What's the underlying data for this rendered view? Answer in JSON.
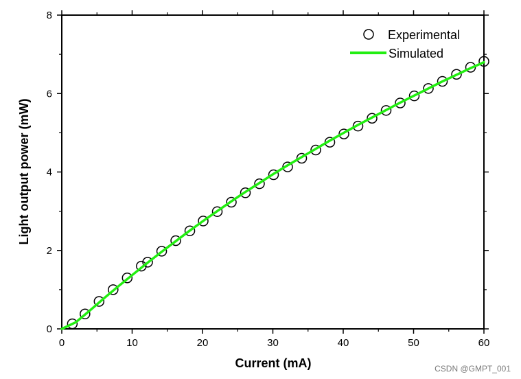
{
  "chart_data": {
    "type": "line",
    "title": "",
    "xlabel": "Current (mA)",
    "ylabel": "Light output power (mW)",
    "xlim": [
      0,
      60
    ],
    "ylim": [
      0,
      8
    ],
    "x_ticks": [
      0,
      10,
      20,
      30,
      40,
      50,
      60
    ],
    "y_ticks": [
      0,
      2,
      4,
      6,
      8
    ],
    "x_tick_labels": [
      "0",
      "10",
      "20",
      "30",
      "40",
      "50",
      "60"
    ],
    "y_tick_labels": [
      "0",
      "2",
      "4",
      "6",
      "8"
    ],
    "grid": false,
    "legend_position": "top-right",
    "series": [
      {
        "name": "Experimental",
        "style": "open-circle-markers",
        "color": "#000000",
        "x": [
          1.5,
          3.3,
          5.3,
          7.3,
          9.3,
          11.3,
          12.2,
          14.2,
          16.2,
          18.2,
          20.1,
          22.1,
          24.1,
          26.1,
          28.1,
          30.1,
          32.1,
          34.1,
          36.1,
          38.1,
          40.1,
          42.1,
          44.1,
          46.1,
          48.1,
          50.1,
          52.1,
          54.1,
          56.1,
          58.1,
          60.0
        ],
        "y": [
          0.13,
          0.38,
          0.7,
          1.0,
          1.3,
          1.6,
          1.7,
          1.98,
          2.25,
          2.5,
          2.75,
          2.99,
          3.23,
          3.47,
          3.7,
          3.93,
          4.13,
          4.35,
          4.56,
          4.76,
          4.97,
          5.17,
          5.37,
          5.57,
          5.76,
          5.94,
          6.13,
          6.31,
          6.49,
          6.67,
          6.82
        ]
      },
      {
        "name": "Simulated",
        "style": "solid-line",
        "color": "#22ee11",
        "x": [
          0,
          2,
          4,
          6,
          8,
          10,
          12,
          14,
          16,
          18,
          20,
          22,
          24,
          26,
          28,
          30,
          32,
          34,
          36,
          38,
          40,
          42,
          44,
          46,
          48,
          50,
          52,
          54,
          56,
          58,
          60
        ],
        "y": [
          0.0,
          0.17,
          0.47,
          0.78,
          1.08,
          1.37,
          1.66,
          1.94,
          2.21,
          2.48,
          2.74,
          2.99,
          3.24,
          3.48,
          3.71,
          3.94,
          4.16,
          4.37,
          4.58,
          4.79,
          4.99,
          5.19,
          5.38,
          5.57,
          5.76,
          5.94,
          6.12,
          6.3,
          6.47,
          6.64,
          6.8
        ]
      }
    ]
  },
  "watermark": "CSDN @GMPT_001"
}
